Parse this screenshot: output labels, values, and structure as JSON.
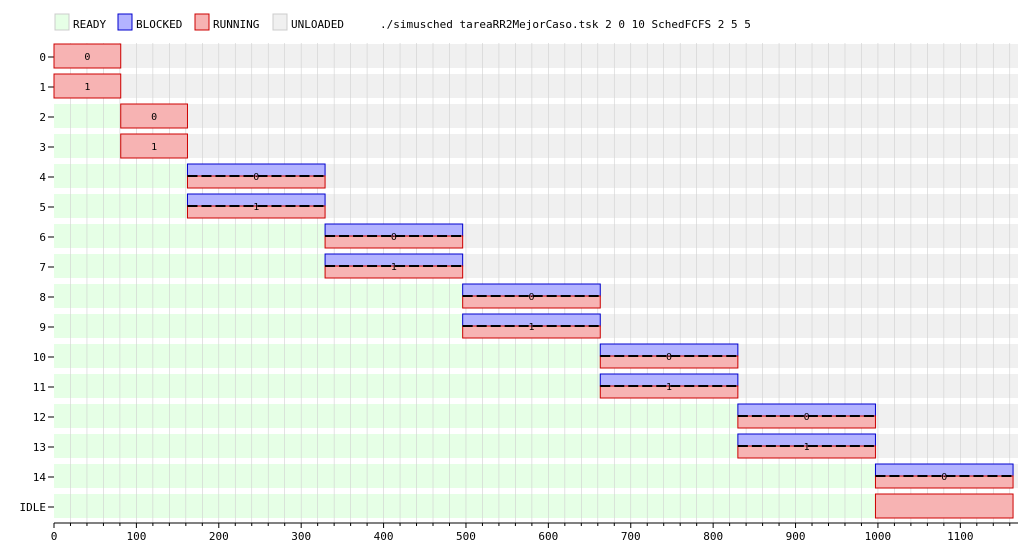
{
  "colors": {
    "ready_fill": "#e6ffe6",
    "blocked_fill": "#b3b3ff",
    "blocked_stroke": "#0000cc",
    "running_fill": "#f7b3b3",
    "running_stroke": "#cc0000",
    "unloaded_fill": "#f0f0f0",
    "grid": "#d0d0d0"
  },
  "chart_data": {
    "type": "gantt",
    "command": "./simusched tareaRR2MejorCaso.tsk 2 0 10 SchedFCFS 2 5 5",
    "legend": [
      {
        "key": "ready",
        "label": "READY"
      },
      {
        "key": "blocked",
        "label": "BLOCKED"
      },
      {
        "key": "running",
        "label": "RUNNING"
      },
      {
        "key": "unloaded",
        "label": "UNLOADED"
      }
    ],
    "rows": [
      "0",
      "1",
      "2",
      "3",
      "4",
      "5",
      "6",
      "7",
      "8",
      "9",
      "10",
      "11",
      "12",
      "13",
      "14",
      "IDLE"
    ],
    "xlim": [
      0,
      1170
    ],
    "xticks": [
      0,
      100,
      200,
      300,
      400,
      500,
      600,
      700,
      800,
      900,
      1000,
      1100
    ],
    "segments": [
      {
        "row": 0,
        "start": 0,
        "end": 81,
        "state": "running",
        "cpu": "0"
      },
      {
        "row": 1,
        "start": 0,
        "end": 81,
        "state": "running",
        "cpu": "1"
      },
      {
        "row": 2,
        "start": 81,
        "end": 162,
        "state": "running",
        "cpu": "0"
      },
      {
        "row": 3,
        "start": 81,
        "end": 162,
        "state": "running",
        "cpu": "1"
      },
      {
        "row": 4,
        "start": 162,
        "end": 329,
        "state": "blocked",
        "cpu": "0"
      },
      {
        "row": 5,
        "start": 162,
        "end": 329,
        "state": "blocked",
        "cpu": "1"
      },
      {
        "row": 6,
        "start": 329,
        "end": 496,
        "state": "blocked",
        "cpu": "0"
      },
      {
        "row": 7,
        "start": 329,
        "end": 496,
        "state": "blocked",
        "cpu": "1"
      },
      {
        "row": 8,
        "start": 496,
        "end": 663,
        "state": "blocked",
        "cpu": "0"
      },
      {
        "row": 9,
        "start": 496,
        "end": 663,
        "state": "blocked",
        "cpu": "1"
      },
      {
        "row": 10,
        "start": 663,
        "end": 830,
        "state": "blocked",
        "cpu": "0"
      },
      {
        "row": 11,
        "start": 663,
        "end": 830,
        "state": "blocked",
        "cpu": "1"
      },
      {
        "row": 12,
        "start": 830,
        "end": 997,
        "state": "blocked",
        "cpu": "0"
      },
      {
        "row": 13,
        "start": 830,
        "end": 997,
        "state": "blocked",
        "cpu": "1"
      },
      {
        "row": 14,
        "start": 997,
        "end": 1164,
        "state": "blocked",
        "cpu": "0"
      },
      {
        "row": 15,
        "start": 997,
        "end": 1164,
        "state": "running",
        "cpu": ""
      }
    ]
  }
}
